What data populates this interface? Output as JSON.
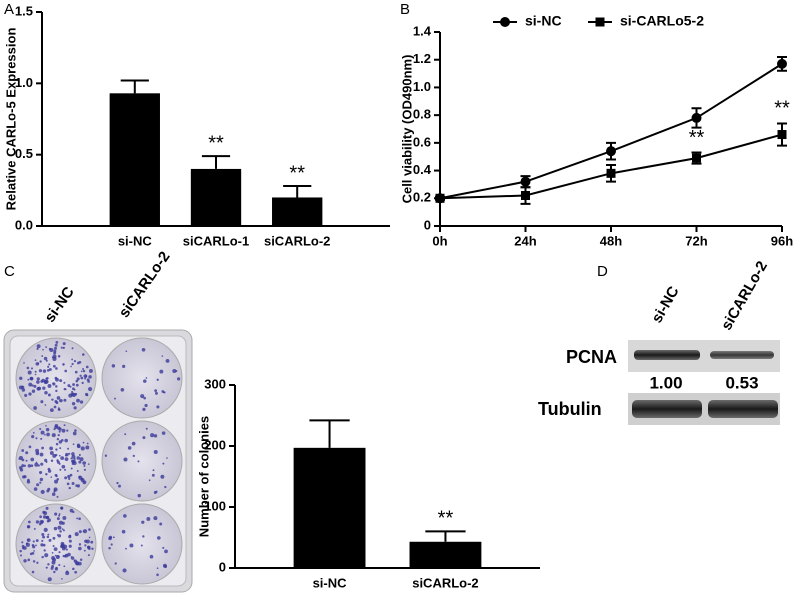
{
  "chart_data": [
    {
      "type": "bar",
      "panel_label": "A",
      "ylabel": "Relative CARLo-5 Expression",
      "categories": [
        "si-NC",
        "siCARLo-1",
        "siCARLo-2"
      ],
      "values": [
        0.93,
        0.4,
        0.2
      ],
      "errors": [
        0.09,
        0.09,
        0.08
      ],
      "annotations": [
        null,
        "**",
        "**"
      ],
      "color": "#000000",
      "ylim": [
        0,
        1.5
      ],
      "yticks": [
        {
          "value": 0,
          "label": "0.0"
        },
        0.5,
        {
          "value": 1,
          "label": "1.0"
        },
        1.5
      ]
    },
    {
      "type": "line",
      "panel_label": "B",
      "ylabel": "Cell viability (OD490nm)",
      "categories": [
        "0h",
        "24h",
        "48h",
        "72h",
        "96h"
      ],
      "series": [
        {
          "name": "si-NC",
          "color": "#000000",
          "marker": "circle",
          "values": [
            0.2,
            0.32,
            0.54,
            0.78,
            1.17
          ],
          "errors": [
            0.01,
            0.04,
            0.06,
            0.07,
            0.05
          ],
          "annotations": [
            null,
            null,
            null,
            null,
            null
          ]
        },
        {
          "name": "si-CARLo5-2",
          "color": "#000000",
          "marker": "square",
          "values": [
            0.2,
            0.22,
            0.38,
            0.49,
            0.66
          ],
          "errors": [
            0.01,
            0.06,
            0.06,
            0.04,
            0.08
          ],
          "annotations": [
            null,
            null,
            null,
            "**",
            "**"
          ]
        }
      ],
      "ylim": [
        0,
        1.4
      ],
      "yticks": [
        0,
        0.2,
        0.4,
        0.6,
        0.8,
        {
          "value": 1,
          "label": "1.0"
        },
        1.2,
        1.4
      ],
      "legend": "top"
    },
    {
      "type": "bar",
      "panel_label": "C",
      "ylabel": "Number of colonies",
      "plate_labels": [
        "si-NC",
        "siCARLo-2"
      ],
      "categories": [
        "si-NC",
        "siCARLo-2"
      ],
      "values": [
        197,
        43
      ],
      "errors": [
        45,
        17
      ],
      "annotations": [
        null,
        "**"
      ],
      "color": "#000000",
      "ylim": [
        0,
        300
      ],
      "yticks": [
        0,
        100,
        200,
        300
      ]
    }
  ],
  "blot": {
    "panel_label": "D",
    "lanes": [
      "si-NC",
      "siCARLo-2"
    ],
    "proteins": [
      "PCNA",
      "Tubulin"
    ],
    "ratios": [
      "1.00",
      "0.53"
    ]
  }
}
